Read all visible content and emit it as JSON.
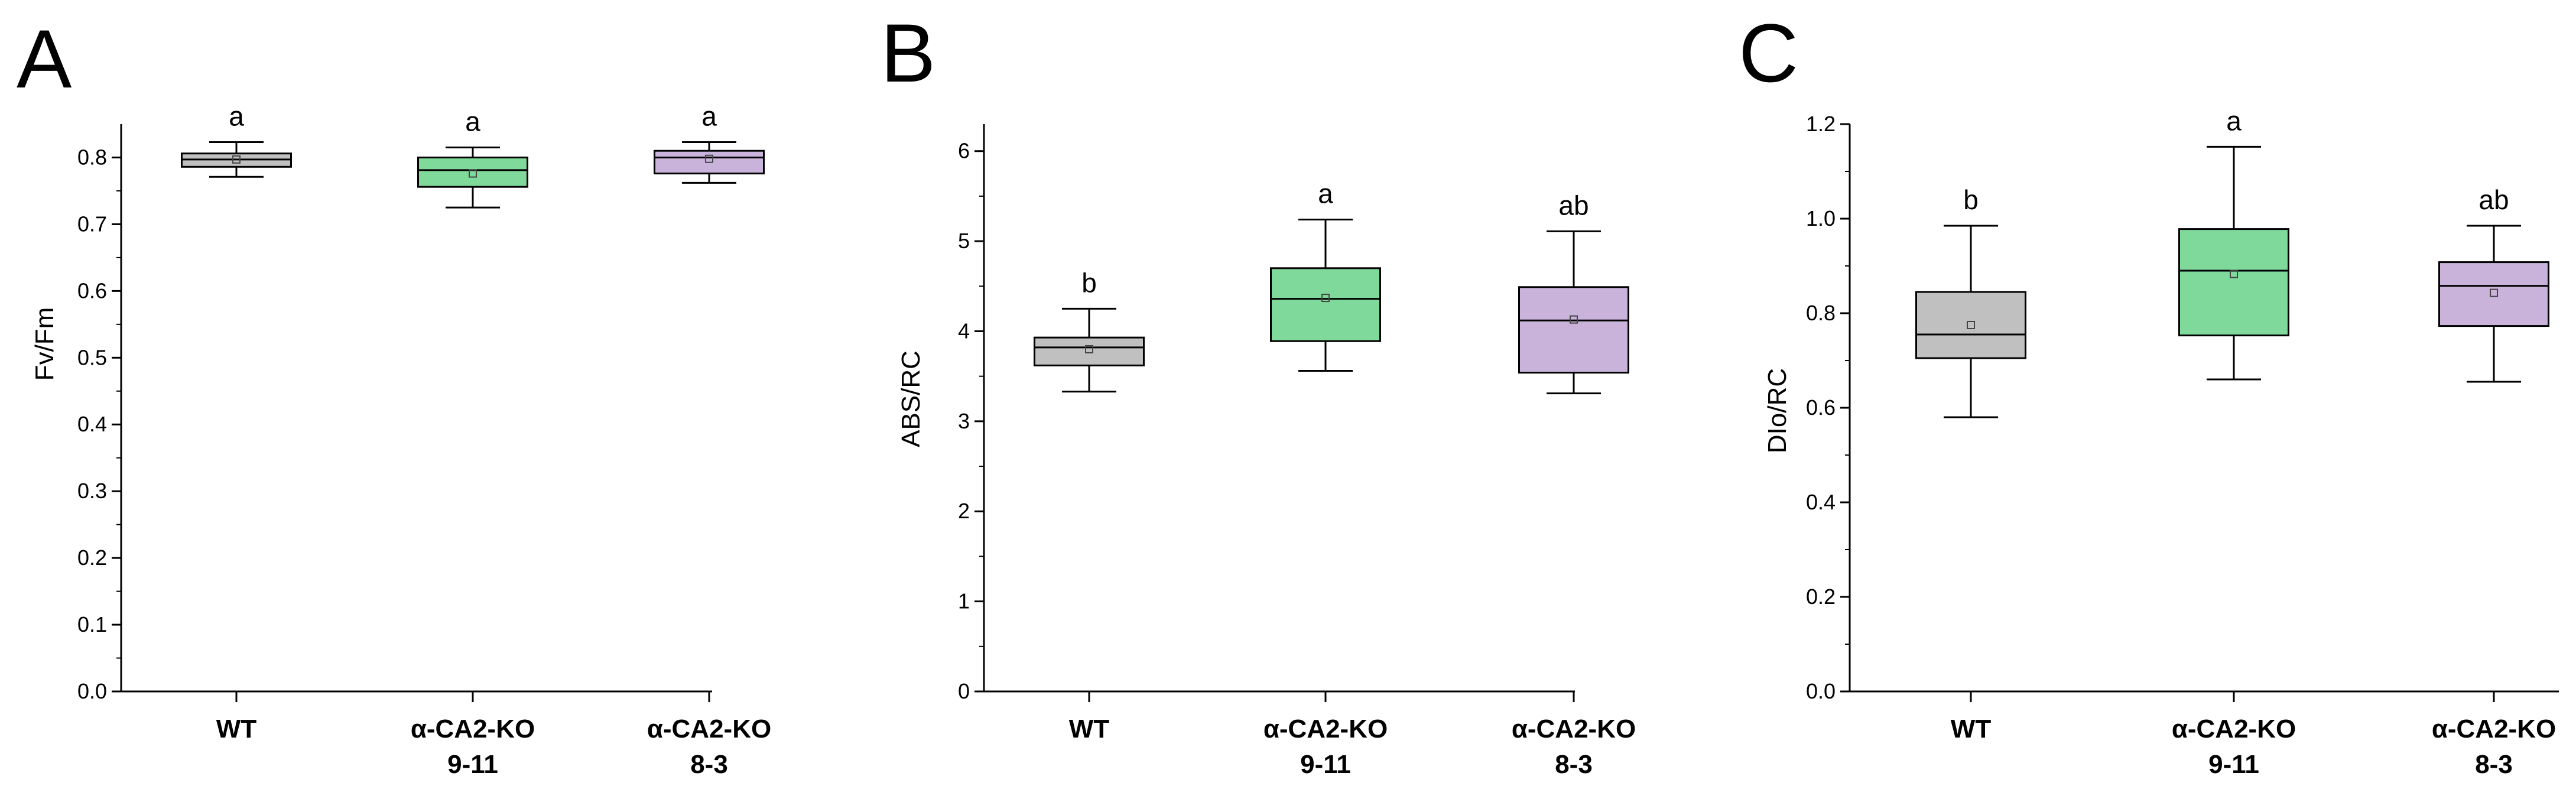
{
  "colors": {
    "WT": "#c0c0c0",
    "KO_9_11": "#7fd99a",
    "KO_8_3": "#c9b3db"
  },
  "chart_data": [
    {
      "type": "box",
      "panel": "A",
      "ylabel": "Fv/Fm",
      "ylim": [
        0,
        0.85
      ],
      "yticks": [
        "0.0",
        "0.1",
        "0.2",
        "0.3",
        "0.4",
        "0.5",
        "0.6",
        "0.7",
        "0.8"
      ],
      "categories": [
        {
          "line1": "WT",
          "line2": ""
        },
        {
          "line1": "α-CA2-KO",
          "line2": "9-11"
        },
        {
          "line1": "α-CA2-KO",
          "line2": "8-3"
        }
      ],
      "boxes": [
        {
          "min": 0.771,
          "q1": 0.786,
          "median": 0.797,
          "q3": 0.806,
          "max": 0.823,
          "mean": 0.797,
          "letter": "a",
          "color": "WT"
        },
        {
          "min": 0.725,
          "q1": 0.756,
          "median": 0.781,
          "q3": 0.8,
          "max": 0.815,
          "mean": 0.776,
          "letter": "a",
          "color": "KO_9_11"
        },
        {
          "min": 0.762,
          "q1": 0.776,
          "median": 0.8,
          "q3": 0.81,
          "max": 0.823,
          "mean": 0.798,
          "letter": "a",
          "color": "KO_8_3"
        }
      ]
    },
    {
      "type": "box",
      "panel": "B",
      "ylabel": "ABS/RC",
      "ylim": [
        0,
        6.3
      ],
      "yticks": [
        "0",
        "1",
        "2",
        "3",
        "4",
        "5",
        "6"
      ],
      "categories": [
        {
          "line1": "WT",
          "line2": ""
        },
        {
          "line1": "α-CA2-KO",
          "line2": "9-11"
        },
        {
          "line1": "α-CA2-KO",
          "line2": "8-3"
        }
      ],
      "boxes": [
        {
          "min": 3.33,
          "q1": 3.62,
          "median": 3.82,
          "q3": 3.93,
          "max": 4.25,
          "mean": 3.8,
          "letter": "b",
          "color": "WT"
        },
        {
          "min": 3.56,
          "q1": 3.89,
          "median": 4.36,
          "q3": 4.7,
          "max": 5.24,
          "mean": 4.37,
          "letter": "a",
          "color": "KO_9_11"
        },
        {
          "min": 3.31,
          "q1": 3.54,
          "median": 4.12,
          "q3": 4.49,
          "max": 5.11,
          "mean": 4.13,
          "letter": "ab",
          "color": "KO_8_3"
        }
      ]
    },
    {
      "type": "box",
      "panel": "C",
      "ylabel": "DIo/RC",
      "ylim": [
        0,
        1.2
      ],
      "yticks": [
        "0.0",
        "0.2",
        "0.4",
        "0.6",
        "0.8",
        "1.0",
        "1.2"
      ],
      "categories": [
        {
          "line1": "WT",
          "line2": ""
        },
        {
          "line1": "α-CA2-KO",
          "line2": "9-11"
        },
        {
          "line1": "α-CA2-KO",
          "line2": "8-3"
        }
      ],
      "boxes": [
        {
          "min": 0.58,
          "q1": 0.705,
          "median": 0.755,
          "q3": 0.845,
          "max": 0.985,
          "mean": 0.775,
          "letter": "b",
          "color": "WT"
        },
        {
          "min": 0.66,
          "q1": 0.753,
          "median": 0.89,
          "q3": 0.978,
          "max": 1.152,
          "mean": 0.883,
          "letter": "a",
          "color": "KO_9_11"
        },
        {
          "min": 0.655,
          "q1": 0.773,
          "median": 0.858,
          "q3": 0.908,
          "max": 0.985,
          "mean": 0.843,
          "letter": "ab",
          "color": "KO_8_3"
        }
      ]
    }
  ]
}
